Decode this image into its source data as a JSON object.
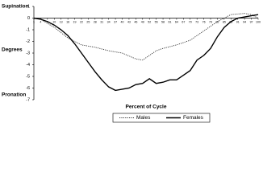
{
  "chart_data": {
    "type": "line",
    "y_labels": [
      "Supination",
      "Degrees",
      "Pronation"
    ],
    "xlabel": "Percent of Cycle",
    "xlim": [
      1,
      100
    ],
    "xticks": [
      1,
      4,
      7,
      10,
      13,
      16,
      19,
      22,
      25,
      28,
      31,
      34,
      37,
      40,
      43,
      46,
      49,
      52,
      55,
      58,
      61,
      64,
      67,
      70,
      73,
      76,
      79,
      82,
      85,
      88,
      91,
      94,
      97,
      100
    ],
    "ylim": [
      -7,
      1
    ],
    "yticks": [
      1,
      0,
      -1,
      -2,
      -3,
      -4,
      -5,
      -6,
      -7
    ],
    "legend": "bottom",
    "series": [
      {
        "name": "Males",
        "color": "#333333",
        "style": "dotted",
        "x": [
          1,
          4,
          10,
          16,
          22,
          28,
          34,
          40,
          46,
          49,
          52,
          55,
          58,
          64,
          70,
          76,
          82,
          85,
          88,
          94,
          97,
          100
        ],
        "values": [
          0,
          -0.1,
          -0.8,
          -1.7,
          -2.3,
          -2.5,
          -2.8,
          -3.0,
          -3.5,
          -3.6,
          -3.2,
          -2.8,
          -2.6,
          -2.3,
          -1.9,
          -1.1,
          -0.3,
          0,
          0.3,
          0.4,
          0.3,
          0
        ]
      },
      {
        "name": "Females",
        "color": "#000000",
        "style": "solid",
        "x": [
          1,
          4,
          7,
          10,
          13,
          16,
          19,
          22,
          25,
          28,
          31,
          34,
          37,
          40,
          43,
          46,
          49,
          52,
          55,
          58,
          61,
          64,
          67,
          70,
          73,
          76,
          79,
          82,
          85,
          88,
          91,
          94,
          97,
          100
        ],
        "values": [
          0,
          -0.1,
          -0.3,
          -0.6,
          -1.0,
          -1.5,
          -2.2,
          -3.0,
          -3.8,
          -4.6,
          -5.3,
          -5.9,
          -6.2,
          -6.1,
          -6.0,
          -5.7,
          -5.6,
          -5.2,
          -5.6,
          -5.5,
          -5.3,
          -5.3,
          -4.9,
          -4.5,
          -3.6,
          -3.2,
          -2.6,
          -1.6,
          -0.8,
          -0.3,
          0,
          0.1,
          0.2,
          0.3
        ]
      }
    ]
  }
}
